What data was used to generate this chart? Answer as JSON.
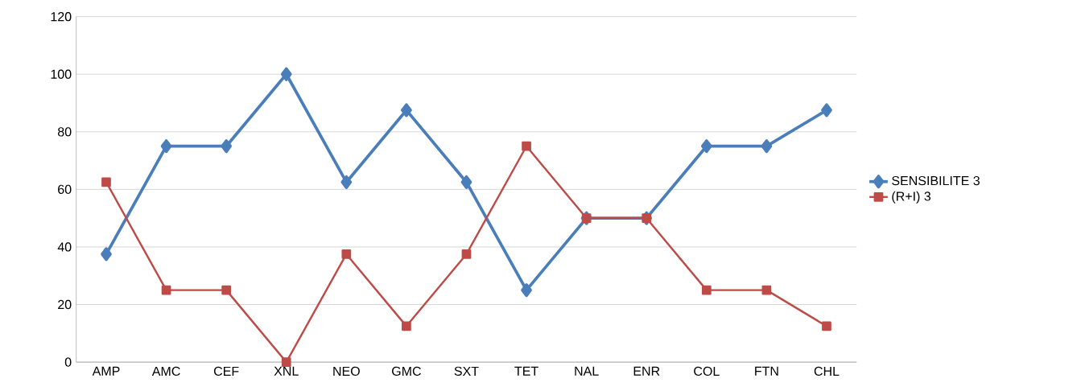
{
  "chart_data": {
    "type": "line",
    "categories": [
      "AMP",
      "AMC",
      "CEF",
      "XNL",
      "NEO",
      "GMC",
      "SXT",
      "TET",
      "NAL",
      "ENR",
      "COL",
      "FTN",
      "CHL"
    ],
    "series": [
      {
        "name": "SENSIBILITE 3",
        "color": "#4a7ebb",
        "marker": "diamond",
        "values": [
          37.5,
          75,
          75,
          100,
          62.5,
          87.5,
          62.5,
          25,
          50,
          50,
          75,
          75,
          87.5
        ]
      },
      {
        "name": "(R+I) 3",
        "color": "#be4b48",
        "marker": "square",
        "values": [
          62.5,
          25,
          25,
          0,
          37.5,
          12.5,
          37.5,
          75,
          50,
          50,
          25,
          25,
          12.5
        ]
      }
    ],
    "ylim": [
      0,
      120
    ],
    "yticks": [
      0,
      20,
      40,
      60,
      80,
      100,
      120
    ],
    "grid": "y",
    "legend": "right"
  }
}
